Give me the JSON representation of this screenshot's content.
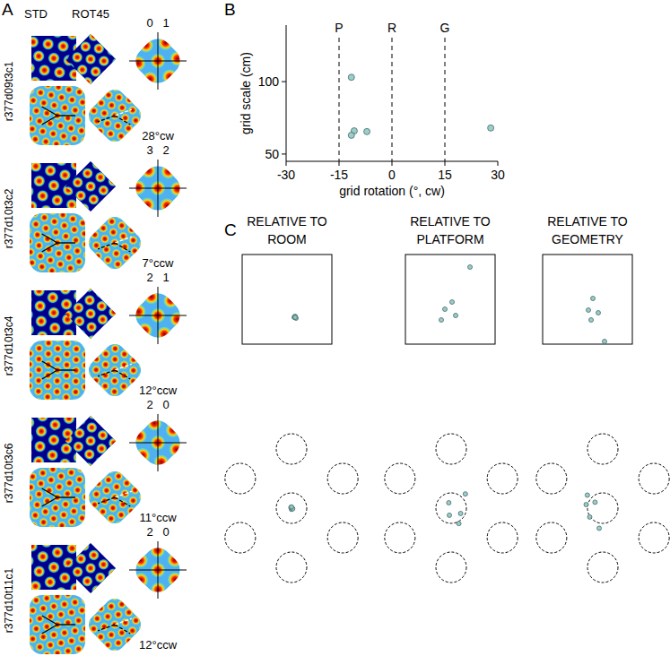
{
  "panel_labels": [
    "A",
    "B",
    "C"
  ],
  "panel_a": {
    "columns": [
      "STD",
      "ROT45"
    ],
    "cells": [
      {
        "name": "r377d09t3c1",
        "peaks": [
          "0",
          "1"
        ],
        "rotation": "28°cw"
      },
      {
        "name": "r377d10t3c2",
        "peaks": [
          "3",
          "2"
        ],
        "rotation": "7°ccw"
      },
      {
        "name": "r377d10t3c4",
        "peaks": [
          "2",
          "1"
        ],
        "rotation": "12°ccw"
      },
      {
        "name": "r377d10t3c6",
        "peaks": [
          "2",
          "0"
        ],
        "rotation": "11°ccw"
      },
      {
        "name": "r377d10t11c1",
        "peaks": [
          "2",
          "0"
        ],
        "rotation": "12°ccw"
      }
    ]
  },
  "chart_data": [
    {
      "type": "scatter",
      "x_label": "grid rotation (°, cw)",
      "y_label": "grid scale (cm)",
      "x": [
        28,
        -7.1,
        -11.5,
        -10.7,
        -11.5
      ],
      "values": [
        68,
        65.5,
        103,
        66,
        63
      ],
      "xlim": [
        -30,
        30
      ],
      "ylim": [
        45,
        139
      ],
      "xticks": [
        -30,
        -15,
        0,
        15,
        30
      ],
      "yticks": [
        50,
        100
      ],
      "reference_lines": [
        {
          "value": -15,
          "label": "P"
        },
        {
          "value": 0,
          "label": "R"
        },
        {
          "value": 15,
          "label": "G"
        }
      ],
      "color": "#8ec9c4",
      "marker": "circle"
    },
    {
      "type": "scatter",
      "title": "RELATIVE TO ROOM",
      "x": [
        0.58,
        0.59,
        0.59,
        0.6,
        0.59
      ],
      "values": [
        0.3,
        0.31,
        0.3,
        0.29,
        0.3
      ],
      "xlim": [
        0,
        1
      ],
      "ylim": [
        0,
        1
      ],
      "tick_labels": false,
      "color": "#8ec9c4",
      "marker": "circle"
    },
    {
      "type": "scatter",
      "title": "RELATIVE TO PLATFORM",
      "x": [
        0.72,
        0.52,
        0.44,
        0.56,
        0.4
      ],
      "values": [
        0.86,
        0.47,
        0.39,
        0.32,
        0.27
      ],
      "xlim": [
        0,
        1
      ],
      "ylim": [
        0,
        1
      ],
      "tick_labels": false,
      "color": "#8ec9c4",
      "marker": "circle"
    },
    {
      "type": "scatter",
      "title": "RELATIVE TO GEOMETRY",
      "x": [
        0.56,
        0.51,
        0.62,
        0.54,
        0.69
      ],
      "values": [
        0.51,
        0.38,
        0.35,
        0.27,
        0.03
      ],
      "xlim": [
        0,
        1
      ],
      "ylim": [
        0,
        1
      ],
      "tick_labels": false,
      "color": "#8ec9c4",
      "marker": "circle"
    },
    {
      "type": "scatter",
      "x": [
        0,
        0.01,
        -0.01,
        0.02,
        0
      ],
      "values": [
        -0.02,
        0,
        0.01,
        -0.01,
        0.02
      ],
      "xlim": [
        -1.1,
        1.1
      ],
      "ylim": [
        -1.1,
        1.1
      ],
      "tick_labels": false,
      "color": "#8ec9c4",
      "marker": "circle"
    },
    {
      "type": "scatter",
      "x": [
        0.24,
        -0.04,
        0.16,
        -0.03,
        0.13
      ],
      "values": [
        0.24,
        0.09,
        -0.09,
        -0.12,
        -0.26
      ],
      "xlim": [
        -1.1,
        1.1
      ],
      "ylim": [
        -1.1,
        1.1
      ],
      "tick_labels": false,
      "color": "#8ec9c4",
      "marker": "circle"
    },
    {
      "type": "scatter",
      "x": [
        -0.26,
        -0.28,
        -0.13,
        -0.22,
        -0.06
      ],
      "values": [
        0.22,
        0.06,
        0.1,
        -0.15,
        -0.34
      ],
      "xlim": [
        -1.1,
        1.1
      ],
      "ylim": [
        -1.1,
        1.1
      ],
      "tick_labels": false,
      "color": "#8ec9c4",
      "marker": "circle"
    }
  ]
}
